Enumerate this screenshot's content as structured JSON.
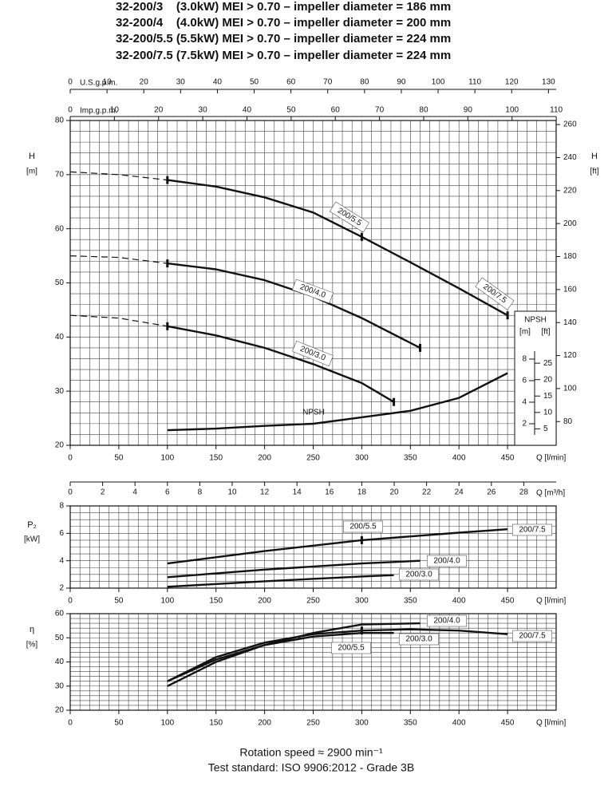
{
  "title": [
    "32-200/3    (3.0kW) MEI > 0.70 – impeller diameter = 186 mm",
    "32-200/4    (4.0kW) MEI > 0.70 – impeller diameter = 200 mm",
    "32-200/5.5 (5.5kW) MEI > 0.70 – impeller diameter = 224 mm",
    "32-200/7.5 (7.5kW) MEI > 0.70 – impeller diameter = 224 mm"
  ],
  "notes": [
    "Rotation speed ≈ 2900 min⁻¹",
    "Test standard: ISO 9906:2012 - Grade 3B"
  ],
  "chart_data": [
    {
      "type": "line",
      "ylabel": "H",
      "yunit": "[m]",
      "y2label": "H",
      "y2unit": "[ft]",
      "xlabel": "Q [l/min]",
      "grid": true,
      "color": "#111111",
      "xlim": [
        0,
        500
      ],
      "xticks": [
        0,
        50,
        100,
        150,
        200,
        250,
        300,
        350,
        400,
        450
      ],
      "xminor": [
        0,
        10,
        20,
        30,
        40,
        50,
        60,
        70,
        80,
        90,
        100,
        110,
        120,
        130,
        140,
        150,
        160,
        170,
        180,
        190,
        200,
        210,
        220,
        230,
        240,
        250,
        260,
        270,
        280,
        290,
        300,
        310,
        320,
        330,
        340,
        350,
        360,
        370,
        380,
        390,
        400,
        410,
        420,
        430,
        440,
        450,
        460,
        470,
        480,
        490,
        500
      ],
      "ylim": [
        20,
        80
      ],
      "yticks": [
        20,
        30,
        40,
        50,
        60,
        70,
        80
      ],
      "yminor": [
        20,
        22,
        24,
        26,
        28,
        30,
        32,
        34,
        36,
        38,
        40,
        42,
        44,
        46,
        48,
        50,
        52,
        54,
        56,
        58,
        60,
        62,
        64,
        66,
        68,
        70,
        72,
        74,
        76,
        78,
        80
      ],
      "y2lim": [
        65.62,
        262.47
      ],
      "y2ticks": [
        80,
        100,
        120,
        140,
        160,
        180,
        200,
        220,
        240,
        260
      ],
      "top_axes": [
        {
          "label": "U.S.g.p.m.",
          "xlim": [
            0,
            132.09
          ],
          "xticks": [
            0,
            10,
            20,
            30,
            40,
            50,
            60,
            70,
            80,
            90,
            100,
            110,
            120,
            130
          ]
        },
        {
          "label": "Imp.g.p.m.",
          "xlim": [
            0,
            109.98
          ],
          "xticks": [
            0,
            10,
            20,
            30,
            40,
            50,
            60,
            70,
            80,
            90,
            100,
            110
          ]
        }
      ],
      "npsh_axis": {
        "title": "NPSH",
        "yunit": "[m]",
        "y2unit": "[ft]",
        "ylim": [
          0,
          30.15
        ],
        "yticks": [
          2,
          4,
          6,
          8
        ],
        "y2lim": [
          0,
          98.9
        ],
        "y2ticks": [
          5,
          10,
          15,
          20,
          25
        ]
      },
      "series": [
        {
          "dashed": true,
          "x": [
            0,
            50,
            100
          ],
          "values": [
            70.5,
            70,
            69
          ]
        },
        {
          "name": "200/5.5",
          "x": [
            100,
            150,
            200,
            250,
            300
          ],
          "values": [
            69,
            67.8,
            65.8,
            63,
            58.5
          ]
        },
        {
          "name": "200/7.5",
          "x": [
            300,
            350,
            400,
            450
          ],
          "values": [
            58.5,
            53.8,
            49,
            44
          ]
        },
        {
          "dashed": true,
          "x": [
            0,
            50,
            100
          ],
          "values": [
            55,
            54.7,
            53.6
          ]
        },
        {
          "name": "200/4.0",
          "x": [
            100,
            150,
            200,
            250,
            300,
            360
          ],
          "values": [
            53.6,
            52.5,
            50.5,
            47.5,
            43.5,
            38
          ]
        },
        {
          "dashed": true,
          "x": [
            0,
            50,
            100
          ],
          "values": [
            44,
            43.5,
            42
          ]
        },
        {
          "name": "200/3.0",
          "x": [
            100,
            150,
            200,
            250,
            300,
            333
          ],
          "values": [
            42,
            40.3,
            38,
            35,
            31.5,
            28
          ]
        },
        {
          "name": "NPSH",
          "axis": "y3",
          "x": [
            100,
            150,
            200,
            250,
            300,
            350,
            400,
            450
          ],
          "values": [
            1.4,
            1.55,
            1.8,
            2,
            2.6,
            3.2,
            4.4,
            6.7
          ]
        }
      ]
    },
    {
      "type": "line",
      "ylabel": "P₂",
      "yunit": "[kW]",
      "xlabel": "Q [l/min]",
      "grid": true,
      "color": "#111111",
      "xlim": [
        0,
        500
      ],
      "xticks": [
        0,
        50,
        100,
        150,
        200,
        250,
        300,
        350,
        400,
        450
      ],
      "xminor": [
        0,
        10,
        20,
        30,
        40,
        50,
        60,
        70,
        80,
        90,
        100,
        110,
        120,
        130,
        140,
        150,
        160,
        170,
        180,
        190,
        200,
        210,
        220,
        230,
        240,
        250,
        260,
        270,
        280,
        290,
        300,
        310,
        320,
        330,
        340,
        350,
        360,
        370,
        380,
        390,
        400,
        410,
        420,
        430,
        440,
        450,
        460,
        470,
        480,
        490,
        500
      ],
      "ylim": [
        2,
        8
      ],
      "yticks": [
        2,
        4,
        6,
        8
      ],
      "yminor": [
        2,
        2.5,
        3,
        3.5,
        4,
        4.5,
        5,
        5.5,
        6,
        6.5,
        7,
        7.5,
        8
      ],
      "top_axes": [
        {
          "label": "Q [m³/h]",
          "xlim": [
            0,
            30
          ],
          "xticks": [
            0,
            2,
            4,
            6,
            8,
            10,
            12,
            14,
            16,
            18,
            20,
            22,
            24,
            26,
            28
          ]
        }
      ],
      "series": [
        {
          "name": "200/5.5",
          "x": [
            100,
            200,
            300
          ],
          "values": [
            3.8,
            4.7,
            5.5
          ]
        },
        {
          "name": "200/7.5",
          "x": [
            300,
            400,
            450
          ],
          "values": [
            5.5,
            6.05,
            6.3
          ]
        },
        {
          "name": "200/4.0",
          "x": [
            100,
            200,
            300,
            360
          ],
          "values": [
            2.8,
            3.35,
            3.8,
            4
          ]
        },
        {
          "name": "200/3.0",
          "x": [
            100,
            200,
            300,
            333
          ],
          "values": [
            2.1,
            2.5,
            2.85,
            2.95
          ]
        }
      ]
    },
    {
      "type": "line",
      "ylabel": "η",
      "yunit": "[%]",
      "xlabel": "Q [l/min]",
      "grid": true,
      "color": "#111111",
      "xlim": [
        0,
        500
      ],
      "xticks": [
        0,
        50,
        100,
        150,
        200,
        250,
        300,
        350,
        400,
        450
      ],
      "xminor": [
        0,
        10,
        20,
        30,
        40,
        50,
        60,
        70,
        80,
        90,
        100,
        110,
        120,
        130,
        140,
        150,
        160,
        170,
        180,
        190,
        200,
        210,
        220,
        230,
        240,
        250,
        260,
        270,
        280,
        290,
        300,
        310,
        320,
        330,
        340,
        350,
        360,
        370,
        380,
        390,
        400,
        410,
        420,
        430,
        440,
        450,
        460,
        470,
        480,
        490,
        500
      ],
      "ylim": [
        20,
        60
      ],
      "yticks": [
        20,
        30,
        40,
        50,
        60
      ],
      "yminor": [
        20,
        22,
        24,
        26,
        28,
        30,
        32,
        34,
        36,
        38,
        40,
        42,
        44,
        46,
        48,
        50,
        52,
        54,
        56,
        58,
        60
      ],
      "series": [
        {
          "name": "200/5.5",
          "x": [
            100,
            150,
            200,
            250,
            300
          ],
          "values": [
            32,
            42,
            48,
            51.5,
            53
          ]
        },
        {
          "name": "200/7.5",
          "x": [
            300,
            350,
            400,
            450
          ],
          "values": [
            53,
            53.5,
            53,
            51.5
          ]
        },
        {
          "name": "200/4.0",
          "x": [
            100,
            150,
            200,
            250,
            300,
            360
          ],
          "values": [
            30,
            40,
            47,
            52,
            55.5,
            56
          ]
        },
        {
          "name": "200/3.0",
          "x": [
            100,
            150,
            200,
            250,
            300,
            333
          ],
          "values": [
            32,
            41,
            47,
            50.5,
            52,
            52
          ]
        }
      ]
    }
  ]
}
